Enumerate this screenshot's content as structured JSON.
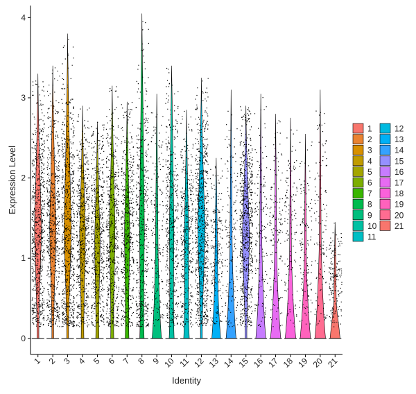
{
  "chart_data": {
    "type": "violin",
    "xlabel": "Identity",
    "ylabel": "Expression Level",
    "ylim": [
      -0.2,
      4.15
    ],
    "yticks": [
      0,
      1,
      2,
      3,
      4
    ],
    "categories": [
      "1",
      "2",
      "3",
      "4",
      "5",
      "6",
      "7",
      "8",
      "9",
      "10",
      "11",
      "12",
      "13",
      "14",
      "15",
      "16",
      "17",
      "18",
      "19",
      "20",
      "21"
    ],
    "colors": [
      "#F8766D",
      "#EA8331",
      "#D89000",
      "#C09B00",
      "#A3A500",
      "#7CAE00",
      "#39B600",
      "#00BB4E",
      "#00BF7D",
      "#00C1A3",
      "#00BFC4",
      "#00BAE0",
      "#00B0F6",
      "#35A2FF",
      "#9590FF",
      "#C77CFF",
      "#E76BF3",
      "#FA62DB",
      "#FF62BC",
      "#FF6C91",
      "#F8766D"
    ],
    "max_expression": [
      3.3,
      3.4,
      3.8,
      2.9,
      2.7,
      3.15,
      2.95,
      4.05,
      3.05,
      3.4,
      2.85,
      3.25,
      2.25,
      3.1,
      2.9,
      3.05,
      2.8,
      2.75,
      2.55,
      3.1,
      1.45
    ],
    "zero_fraction": [
      0.03,
      0.13,
      0.0,
      0.22,
      0.26,
      0.25,
      0.3,
      0.35,
      0.75,
      0.4,
      0.45,
      0.0,
      0.7,
      0.8,
      0.0,
      0.8,
      0.82,
      0.85,
      0.83,
      0.85,
      0.8
    ],
    "legend": {
      "col1": [
        "1",
        "2",
        "3",
        "4",
        "5",
        "6",
        "7",
        "8",
        "9",
        "10",
        "11"
      ],
      "col2": [
        "12",
        "13",
        "14",
        "15",
        "16",
        "17",
        "18",
        "19",
        "20",
        "21"
      ]
    }
  }
}
